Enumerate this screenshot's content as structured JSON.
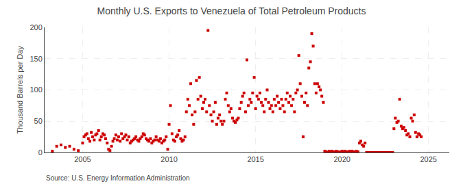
{
  "chart_data": {
    "type": "scatter",
    "title": "Monthly U.S. Exports to Venezuela of Total Petroleum Products",
    "ylabel": "Thousand Barrels per Day",
    "annotations": [
      "Source: U.S. Energy Information Administration"
    ],
    "color": "#cc0000",
    "marker": "square",
    "grid": true,
    "xlim": [
      2002.8,
      2026.2
    ],
    "xticks": [
      2005,
      2010,
      2015,
      2020,
      2025
    ],
    "ylim": [
      0,
      200
    ],
    "yticks": [
      0,
      50,
      100,
      150,
      200
    ],
    "x": [
      2003.25,
      2003.5,
      2003.75,
      2004.0,
      2004.25,
      2004.5,
      2004.75,
      2005.0,
      2005.08,
      2005.17,
      2005.25,
      2005.33,
      2005.42,
      2005.5,
      2005.58,
      2005.67,
      2005.75,
      2005.83,
      2005.92,
      2006.0,
      2006.08,
      2006.17,
      2006.25,
      2006.33,
      2006.42,
      2006.5,
      2006.58,
      2006.67,
      2006.75,
      2006.83,
      2006.92,
      2007.0,
      2007.08,
      2007.17,
      2007.25,
      2007.33,
      2007.42,
      2007.5,
      2007.58,
      2007.67,
      2007.75,
      2007.83,
      2007.92,
      2008.0,
      2008.08,
      2008.17,
      2008.25,
      2008.33,
      2008.42,
      2008.5,
      2008.58,
      2008.67,
      2008.75,
      2008.83,
      2008.92,
      2009.0,
      2009.08,
      2009.17,
      2009.25,
      2009.33,
      2009.42,
      2009.5,
      2009.58,
      2009.67,
      2009.75,
      2009.83,
      2009.92,
      2010.0,
      2010.08,
      2010.17,
      2010.25,
      2010.33,
      2010.42,
      2010.5,
      2010.58,
      2010.67,
      2010.75,
      2010.83,
      2010.92,
      2011.0,
      2011.08,
      2011.17,
      2011.25,
      2011.33,
      2011.42,
      2011.5,
      2011.58,
      2011.67,
      2011.75,
      2011.83,
      2011.92,
      2012.0,
      2012.08,
      2012.17,
      2012.25,
      2012.33,
      2012.42,
      2012.5,
      2012.58,
      2012.67,
      2012.75,
      2012.83,
      2012.92,
      2013.0,
      2013.08,
      2013.17,
      2013.25,
      2013.33,
      2013.42,
      2013.5,
      2013.58,
      2013.67,
      2013.75,
      2013.83,
      2013.92,
      2014.0,
      2014.08,
      2014.17,
      2014.25,
      2014.33,
      2014.42,
      2014.5,
      2014.58,
      2014.67,
      2014.75,
      2014.83,
      2014.92,
      2015.0,
      2015.08,
      2015.17,
      2015.25,
      2015.33,
      2015.42,
      2015.5,
      2015.58,
      2015.67,
      2015.75,
      2015.83,
      2015.92,
      2016.0,
      2016.08,
      2016.17,
      2016.25,
      2016.33,
      2016.42,
      2016.5,
      2016.58,
      2016.67,
      2016.75,
      2016.83,
      2016.92,
      2017.0,
      2017.08,
      2017.17,
      2017.25,
      2017.33,
      2017.42,
      2017.5,
      2017.58,
      2017.67,
      2017.75,
      2017.83,
      2017.92,
      2018.0,
      2018.08,
      2018.17,
      2018.25,
      2018.33,
      2018.42,
      2018.5,
      2018.58,
      2018.67,
      2018.75,
      2018.83,
      2018.92,
      2019.0,
      2019.08,
      2019.17,
      2019.25,
      2019.33,
      2019.42,
      2019.5,
      2019.58,
      2019.67,
      2019.75,
      2019.83,
      2019.92,
      2020.0,
      2020.08,
      2020.17,
      2020.25,
      2020.33,
      2020.42,
      2020.5,
      2020.58,
      2020.67,
      2020.75,
      2020.83,
      2020.92,
      2021.0,
      2021.08,
      2021.17,
      2021.25,
      2021.33,
      2021.42,
      2021.5,
      2021.58,
      2021.67,
      2021.75,
      2021.83,
      2021.92,
      2022.0,
      2022.08,
      2022.17,
      2022.25,
      2022.33,
      2022.42,
      2022.5,
      2022.58,
      2022.67,
      2022.75,
      2022.83,
      2022.92,
      2023.0,
      2023.08,
      2023.17,
      2023.25,
      2023.33,
      2023.42,
      2023.5,
      2023.58,
      2023.67,
      2023.75,
      2023.83,
      2023.92,
      2024.0,
      2024.08,
      2024.17,
      2024.25,
      2024.33,
      2024.42,
      2024.5,
      2024.58
    ],
    "values": [
      2,
      10,
      12,
      8,
      10,
      5,
      3,
      15,
      25,
      28,
      30,
      22,
      18,
      32,
      25,
      20,
      28,
      30,
      35,
      20,
      25,
      30,
      28,
      22,
      15,
      5,
      3,
      10,
      18,
      22,
      28,
      20,
      25,
      18,
      30,
      22,
      25,
      28,
      20,
      25,
      15,
      18,
      20,
      22,
      25,
      20,
      18,
      22,
      25,
      30,
      28,
      22,
      20,
      18,
      22,
      15,
      18,
      20,
      25,
      20,
      18,
      22,
      15,
      18,
      20,
      25,
      5,
      45,
      75,
      30,
      20,
      18,
      25,
      28,
      35,
      22,
      18,
      20,
      25,
      65,
      85,
      75,
      110,
      60,
      45,
      65,
      115,
      85,
      120,
      90,
      70,
      80,
      85,
      65,
      195,
      75,
      60,
      50,
      65,
      80,
      45,
      55,
      60,
      50,
      45,
      50,
      85,
      95,
      75,
      65,
      70,
      55,
      50,
      48,
      52,
      55,
      70,
      80,
      90,
      95,
      65,
      148,
      75,
      85,
      80,
      95,
      120,
      70,
      90,
      85,
      95,
      80,
      75,
      65,
      85,
      100,
      80,
      70,
      75,
      65,
      85,
      75,
      90,
      80,
      70,
      85,
      75,
      65,
      85,
      95,
      80,
      90,
      75,
      85,
      65,
      95,
      100,
      155,
      110,
      90,
      25,
      80,
      95,
      75,
      135,
      145,
      190,
      170,
      110,
      95,
      110,
      105,
      100,
      90,
      80,
      2,
      1,
      0,
      2,
      1,
      2,
      0,
      1,
      2,
      1,
      0,
      1,
      2,
      1,
      2,
      1,
      0,
      2,
      1,
      2,
      1,
      0,
      2,
      1,
      15,
      18,
      12,
      10,
      15,
      0,
      0,
      0,
      0,
      0,
      0,
      0,
      0,
      0,
      0,
      0,
      0,
      0,
      0,
      0,
      0,
      0,
      0,
      0,
      38,
      55,
      48,
      50,
      85,
      42,
      38,
      40,
      35,
      28,
      30,
      25,
      55,
      50,
      60,
      32,
      25,
      30,
      28,
      25
    ]
  }
}
